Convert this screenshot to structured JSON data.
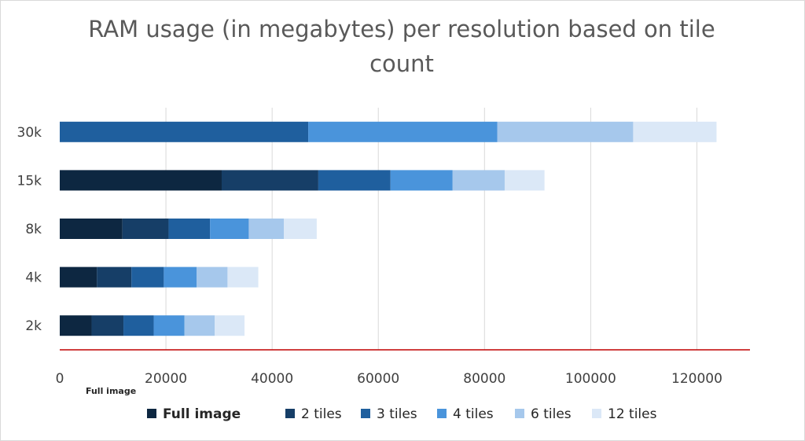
{
  "chart_data": {
    "type": "bar",
    "orientation": "horizontal",
    "stacked": true,
    "title_lines": [
      "RAM usage (in megabytes) per resolution based on tile",
      "count"
    ],
    "categories": [
      "30k",
      "15k",
      "8k",
      "4k",
      "2k"
    ],
    "series": [
      {
        "name": "Full image",
        "color": "#0d2741",
        "values": [
          0,
          30500,
          11800,
          7000,
          6000
        ]
      },
      {
        "name": "2 tiles",
        "color": "#163e67",
        "values": [
          0,
          18200,
          8700,
          6500,
          6000
        ]
      },
      {
        "name": "3 tiles",
        "color": "#1f5f9e",
        "values": [
          46800,
          13600,
          7800,
          6100,
          5700
        ]
      },
      {
        "name": "4 tiles",
        "color": "#4a94db",
        "values": [
          35600,
          11700,
          7300,
          6200,
          5800
        ]
      },
      {
        "name": "6 tiles",
        "color": "#a6c8ec",
        "values": [
          25600,
          9800,
          6600,
          5800,
          5700
        ]
      },
      {
        "name": "12 tiles",
        "color": "#dbe8f7",
        "values": [
          15700,
          7500,
          6200,
          5800,
          5600
        ]
      }
    ],
    "xlim": [
      0,
      130000
    ],
    "xticks": [
      0,
      20000,
      40000,
      60000,
      80000,
      100000,
      120000
    ],
    "grid": true,
    "legend_position": "bottom",
    "annotation": "Full image"
  }
}
